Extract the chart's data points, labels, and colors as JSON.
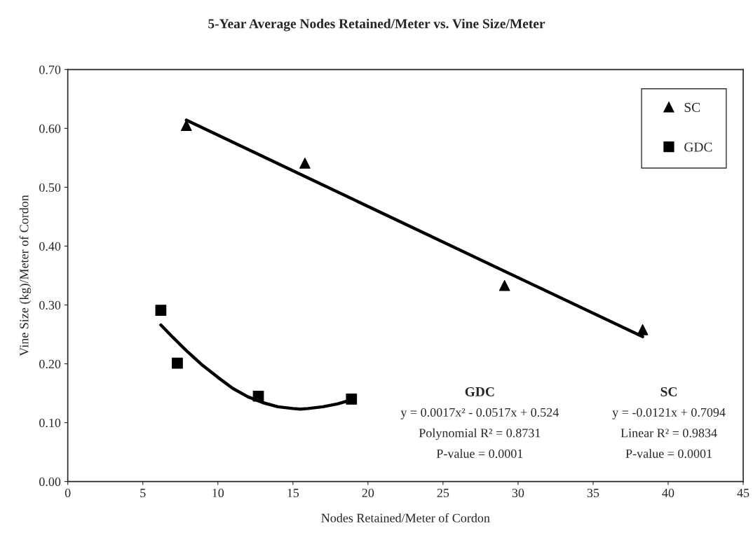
{
  "chart_data": {
    "type": "scatter",
    "title": "5-Year Average Nodes Retained/Meter vs. Vine Size/Meter",
    "xlabel": "Nodes Retained/Meter of Cordon",
    "ylabel": "Vine Size (kg)/Meter of Cordon",
    "series": [
      {
        "name": "SC",
        "marker": "triangle",
        "color": "#000000",
        "x": [
          7.9,
          15.8,
          29.1,
          38.3
        ],
        "values": [
          0.605,
          0.541,
          0.333,
          0.258
        ]
      },
      {
        "name": "GDC",
        "marker": "square",
        "color": "#000000",
        "x": [
          6.2,
          7.3,
          12.7,
          18.9
        ],
        "values": [
          0.291,
          0.201,
          0.145,
          0.14
        ]
      },
      {
        "type": "line",
        "marker": "none",
        "color": "#000000",
        "x": [
          7.9,
          38.3
        ],
        "values": [
          0.614,
          0.246
        ]
      },
      {
        "type": "line",
        "marker": "none",
        "color": "#000000",
        "x": [
          6.2,
          7,
          8,
          9,
          10,
          11,
          12,
          13,
          14,
          15,
          15.5,
          16,
          17,
          18,
          18.9
        ],
        "values": [
          0.266,
          0.245,
          0.22,
          0.197,
          0.177,
          0.158,
          0.144,
          0.134,
          0.127,
          0.124,
          0.123,
          0.124,
          0.127,
          0.132,
          0.139
        ]
      }
    ],
    "xlim": [
      0,
      45
    ],
    "xticks": [
      0,
      5,
      10,
      15,
      20,
      25,
      30,
      35,
      40,
      45
    ],
    "ylim": [
      0,
      0.7
    ],
    "yticks": [
      {
        "value": 0,
        "label": "0.00"
      },
      {
        "value": 0.1,
        "label": "0.10"
      },
      {
        "value": 0.2,
        "label": "0.20"
      },
      {
        "value": 0.3,
        "label": "0.30"
      },
      {
        "value": 0.4,
        "label": "0.40"
      },
      {
        "value": 0.5,
        "label": "0.50"
      },
      {
        "value": 0.6,
        "label": "0.60"
      },
      {
        "value": 0.7,
        "label": "0.70"
      }
    ],
    "grid": false,
    "legend": "top right",
    "line_style": "solid",
    "annotations": [
      "GDC",
      "y = 0.0017x² - 0.0517x + 0.524",
      "Polynomial R² = 0.8731",
      "P-value = 0.0001",
      "SC",
      "y = -0.0121x + 0.7094",
      "Linear R² = 0.9834",
      "P-value = 0.0001"
    ]
  }
}
